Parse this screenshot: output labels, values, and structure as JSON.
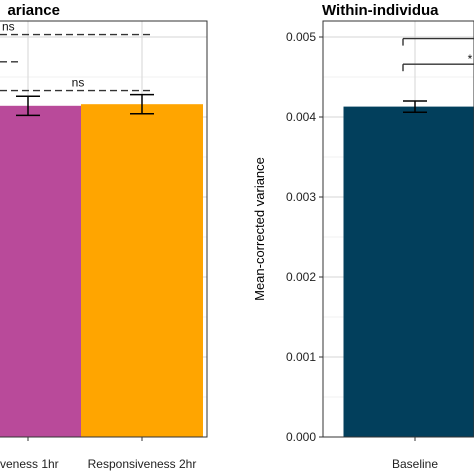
{
  "chart_data": [
    {
      "type": "bar",
      "title": "ariance",
      "categories": [
        "iveness 1hr",
        "Responsiveness 2hr"
      ],
      "values": [
        0.00414,
        0.00416
      ],
      "errors": [
        0.00012,
        0.00012
      ],
      "colors": [
        "#b94a9a",
        "#ffa500"
      ],
      "ylim": [
        0,
        0.0052
      ],
      "grid": true,
      "significance": [
        {
          "label": "ns",
          "value": 0.00503
        },
        {
          "label": "",
          "value": 0.00469
        },
        {
          "label": "ns",
          "value": 0.00433
        }
      ],
      "legend": "none"
    },
    {
      "type": "bar",
      "title": "Within-individua",
      "ylabel": "Mean-corrected variance",
      "categories": [
        "Baseline"
      ],
      "values": [
        0.00413
      ],
      "errors": [
        7e-05
      ],
      "colors": [
        "#023f5c"
      ],
      "ylim": [
        0,
        0.0052
      ],
      "yticks": [
        "0.000",
        "0.001",
        "0.002",
        "0.003",
        "0.004",
        "0.005"
      ],
      "grid": true,
      "significance": [
        {
          "label": "",
          "value": 0.00498
        },
        {
          "label": "*",
          "value": 0.00466
        }
      ],
      "legend": "none"
    }
  ]
}
